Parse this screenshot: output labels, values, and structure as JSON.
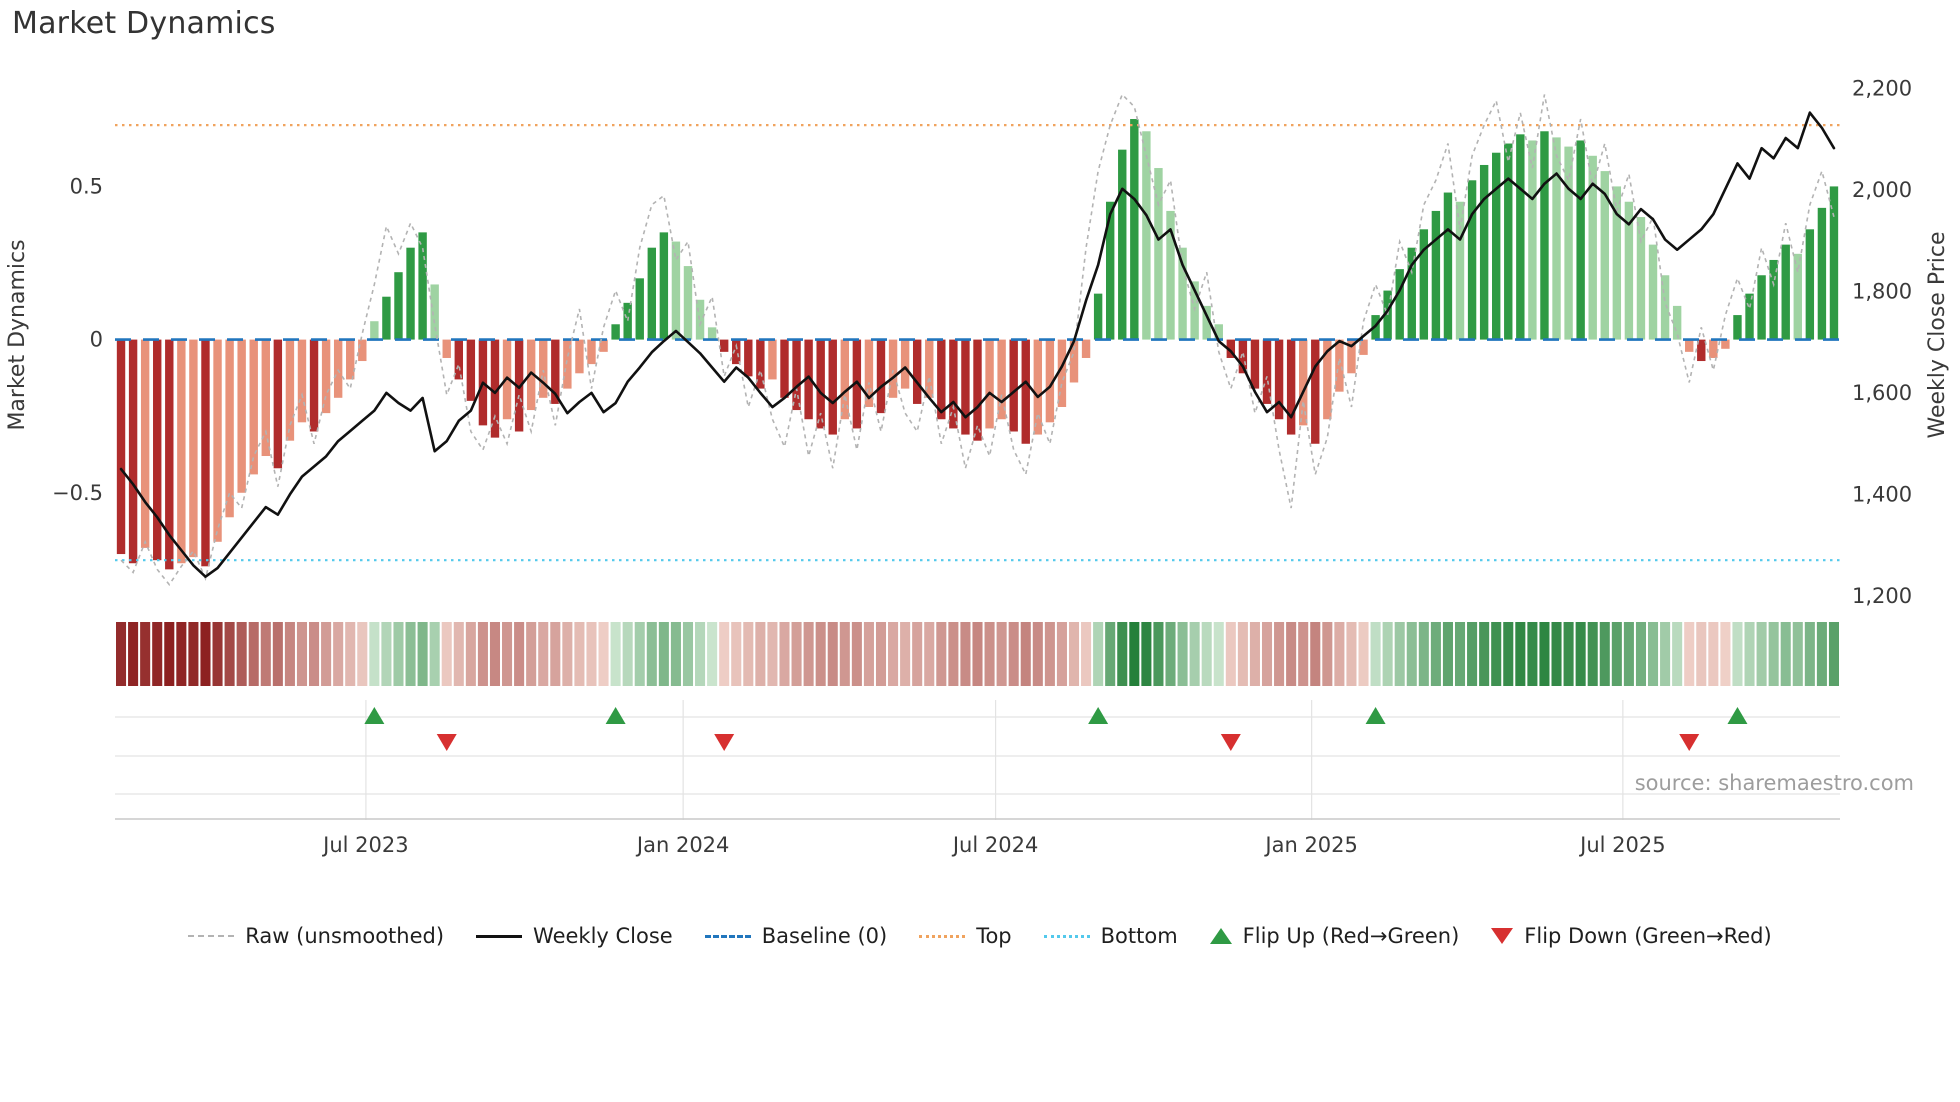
{
  "title": "Market Dynamics",
  "source": "source: sharemaestro.com",
  "axes": {
    "left_label": "Market Dynamics",
    "right_label": "Weekly Close Price",
    "left_ticks": [
      {
        "v": 0.5,
        "label": "0.5"
      },
      {
        "v": 0,
        "label": "0"
      },
      {
        "v": -0.5,
        "label": "−0.5"
      }
    ],
    "right_ticks": [
      {
        "v": 2200,
        "label": "2,200"
      },
      {
        "v": 2000,
        "label": "2,000"
      },
      {
        "v": 1800,
        "label": "1,800"
      },
      {
        "v": 1600,
        "label": "1,600"
      },
      {
        "v": 1400,
        "label": "1,400"
      },
      {
        "v": 1200,
        "label": "1,200"
      }
    ],
    "x_ticks": [
      {
        "week": 20.3,
        "label": "Jul 2023"
      },
      {
        "week": 46.6,
        "label": "Jan 2024"
      },
      {
        "week": 72.5,
        "label": "Jul 2024"
      },
      {
        "week": 98.7,
        "label": "Jan 2025"
      },
      {
        "week": 124.5,
        "label": "Jul 2025"
      }
    ]
  },
  "legend": {
    "items": [
      {
        "label": "Raw (unsmoothed)",
        "swatch": "dashed-gray-line"
      },
      {
        "label": "Weekly Close",
        "swatch": "solid-black-line"
      },
      {
        "label": "Baseline (0)",
        "swatch": "dashed-blue-line"
      },
      {
        "label": "Top",
        "swatch": "dotted-orange-line"
      },
      {
        "label": "Bottom",
        "swatch": "dotted-cyan-line"
      },
      {
        "label": "Flip Up (Red→Green)",
        "swatch": "green-up-triangle"
      },
      {
        "label": "Flip Down (Green→Red)",
        "swatch": "red-down-triangle"
      }
    ]
  },
  "colors": {
    "bar_pos_strong": "#2f9a44",
    "bar_pos_weak": "#9fd3a2",
    "bar_neg_strong": "#b02c2c",
    "bar_neg_weak": "#e8927a",
    "price_line": "#111111",
    "raw_line": "#b3b3b3",
    "baseline": "#2176bd",
    "top": "#f0a35e",
    "bottom": "#53c9ec",
    "flip_up": "#2f9a44",
    "flip_down": "#d73030",
    "heat_pos_dark": "#1d7c33",
    "heat_pos_light": "#d4ead6",
    "heat_neg_dark": "#8c1f1f",
    "heat_neg_light": "#f3d7ce",
    "grid": "#e3e3e3",
    "axis_line": "#c9c9c9"
  },
  "chart_data": {
    "type": "composite",
    "n_points": 143,
    "x_description": "143 weekly observations; x ticks mark Jul 2023, Jan 2024, Jul 2024, Jan 2025, Jul 2025",
    "left_axis": {
      "label": "Market Dynamics",
      "range": [
        -0.85,
        0.88
      ],
      "ticks": [
        -0.5,
        0,
        0.5
      ]
    },
    "right_axis": {
      "label": "Weekly Close Price",
      "range": [
        1192,
        2236
      ],
      "ticks": [
        1200,
        1400,
        1600,
        1800,
        2000,
        2200
      ]
    },
    "reference_lines": {
      "baseline": 0,
      "top": 0.7,
      "bottom": -0.72
    },
    "series": [
      {
        "name": "Market Dynamics (smoothed bars)",
        "type": "bar",
        "axis": "left",
        "shading_rule": "dark shade when |value| >= previous |value|, light shade when fading",
        "values": [
          -0.7,
          -0.73,
          -0.68,
          -0.72,
          -0.75,
          -0.73,
          -0.71,
          -0.74,
          -0.66,
          -0.58,
          -0.5,
          -0.44,
          -0.38,
          -0.42,
          -0.33,
          -0.27,
          -0.3,
          -0.24,
          -0.19,
          -0.13,
          -0.07,
          0.06,
          0.14,
          0.22,
          0.3,
          0.35,
          0.18,
          -0.06,
          -0.13,
          -0.2,
          -0.28,
          -0.32,
          -0.26,
          -0.3,
          -0.23,
          -0.19,
          -0.21,
          -0.16,
          -0.11,
          -0.08,
          -0.04,
          0.05,
          0.12,
          0.2,
          0.3,
          0.35,
          0.32,
          0.24,
          0.13,
          0.04,
          -0.04,
          -0.08,
          -0.12,
          -0.16,
          -0.13,
          -0.19,
          -0.23,
          -0.26,
          -0.29,
          -0.31,
          -0.26,
          -0.29,
          -0.22,
          -0.24,
          -0.19,
          -0.16,
          -0.21,
          -0.19,
          -0.26,
          -0.29,
          -0.31,
          -0.33,
          -0.29,
          -0.26,
          -0.3,
          -0.34,
          -0.31,
          -0.27,
          -0.22,
          -0.14,
          -0.06,
          0.15,
          0.45,
          0.62,
          0.72,
          0.68,
          0.56,
          0.42,
          0.3,
          0.19,
          0.11,
          0.05,
          -0.06,
          -0.11,
          -0.16,
          -0.21,
          -0.26,
          -0.31,
          -0.28,
          -0.34,
          -0.26,
          -0.17,
          -0.11,
          -0.05,
          0.08,
          0.16,
          0.23,
          0.3,
          0.36,
          0.42,
          0.48,
          0.45,
          0.52,
          0.57,
          0.61,
          0.64,
          0.67,
          0.65,
          0.68,
          0.66,
          0.63,
          0.65,
          0.6,
          0.55,
          0.5,
          0.45,
          0.4,
          0.31,
          0.21,
          0.11,
          -0.04,
          -0.07,
          -0.06,
          -0.03,
          0.08,
          0.15,
          0.21,
          0.26,
          0.31,
          0.28,
          0.36,
          0.43,
          0.5
        ]
      },
      {
        "name": "Raw (unsmoothed)",
        "type": "line",
        "axis": "left",
        "values": [
          -0.72,
          -0.76,
          -0.66,
          -0.75,
          -0.8,
          -0.74,
          -0.69,
          -0.78,
          -0.62,
          -0.5,
          -0.55,
          -0.38,
          -0.3,
          -0.48,
          -0.28,
          -0.18,
          -0.34,
          -0.18,
          -0.1,
          -0.16,
          0.02,
          0.18,
          0.37,
          0.28,
          0.38,
          0.3,
          0.05,
          -0.18,
          -0.08,
          -0.3,
          -0.36,
          -0.25,
          -0.34,
          -0.18,
          -0.3,
          -0.1,
          -0.28,
          -0.06,
          0.1,
          -0.16,
          0.04,
          0.16,
          0.06,
          0.3,
          0.44,
          0.47,
          0.26,
          0.32,
          0.05,
          0.14,
          -0.12,
          -0.02,
          -0.22,
          -0.1,
          -0.26,
          -0.35,
          -0.16,
          -0.38,
          -0.24,
          -0.42,
          -0.18,
          -0.36,
          -0.14,
          -0.3,
          -0.1,
          -0.24,
          -0.3,
          -0.12,
          -0.34,
          -0.22,
          -0.42,
          -0.28,
          -0.38,
          -0.18,
          -0.36,
          -0.44,
          -0.24,
          -0.34,
          -0.14,
          -0.04,
          0.3,
          0.55,
          0.7,
          0.8,
          0.76,
          0.6,
          0.44,
          0.52,
          0.24,
          0.1,
          0.22,
          -0.04,
          -0.16,
          -0.04,
          -0.24,
          -0.12,
          -0.36,
          -0.55,
          -0.2,
          -0.44,
          -0.32,
          -0.06,
          -0.22,
          0.06,
          0.18,
          0.08,
          0.32,
          0.22,
          0.44,
          0.52,
          0.64,
          0.36,
          0.6,
          0.7,
          0.78,
          0.58,
          0.74,
          0.56,
          0.8,
          0.6,
          0.52,
          0.72,
          0.5,
          0.64,
          0.42,
          0.54,
          0.32,
          0.4,
          0.12,
          0.02,
          -0.14,
          0.04,
          -0.1,
          0.08,
          0.2,
          0.1,
          0.3,
          0.18,
          0.38,
          0.22,
          0.44,
          0.55,
          0.4
        ]
      },
      {
        "name": "Weekly Close",
        "type": "line",
        "axis": "right",
        "values": [
          1450,
          1420,
          1385,
          1355,
          1320,
          1290,
          1260,
          1238,
          1255,
          1285,
          1315,
          1345,
          1375,
          1360,
          1400,
          1435,
          1455,
          1475,
          1505,
          1525,
          1545,
          1565,
          1600,
          1580,
          1565,
          1590,
          1485,
          1505,
          1545,
          1565,
          1620,
          1600,
          1630,
          1610,
          1640,
          1620,
          1598,
          1560,
          1582,
          1600,
          1562,
          1580,
          1622,
          1650,
          1680,
          1702,
          1722,
          1700,
          1678,
          1650,
          1622,
          1650,
          1630,
          1600,
          1572,
          1590,
          1612,
          1632,
          1600,
          1580,
          1602,
          1622,
          1590,
          1612,
          1630,
          1650,
          1620,
          1590,
          1562,
          1582,
          1552,
          1572,
          1600,
          1582,
          1602,
          1622,
          1592,
          1612,
          1652,
          1702,
          1782,
          1852,
          1952,
          2002,
          1982,
          1950,
          1902,
          1922,
          1852,
          1802,
          1752,
          1702,
          1682,
          1652,
          1602,
          1562,
          1582,
          1552,
          1602,
          1652,
          1682,
          1702,
          1692,
          1712,
          1732,
          1762,
          1802,
          1852,
          1882,
          1902,
          1922,
          1902,
          1952,
          1982,
          2002,
          2022,
          2002,
          1982,
          2012,
          2032,
          2002,
          1982,
          2012,
          1992,
          1952,
          1932,
          1962,
          1942,
          1902,
          1882,
          1902,
          1922,
          1952,
          2002,
          2052,
          2022,
          2082,
          2062,
          2102,
          2082,
          2152,
          2122,
          2082
        ]
      }
    ],
    "heat_strip": {
      "derived_from": "Market Dynamics (smoothed bars)",
      "scale_abs_max": 0.75
    },
    "flip_up_weeks": [
      21,
      41,
      81,
      104,
      134
    ],
    "flip_down_weeks": [
      27,
      50,
      92,
      130
    ]
  }
}
